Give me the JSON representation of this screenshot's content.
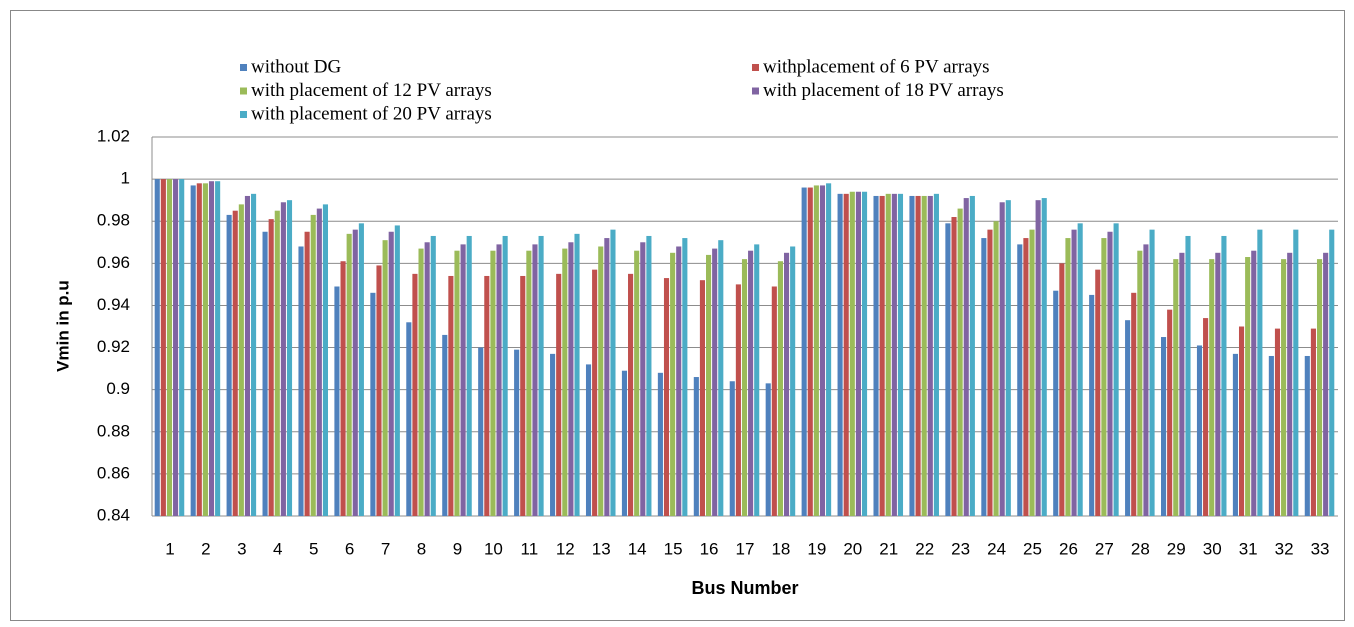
{
  "chart_data": {
    "type": "bar",
    "x_label": "Bus Number",
    "y_label": "Vmin in p.u",
    "categories": [
      "1",
      "2",
      "3",
      "4",
      "5",
      "6",
      "7",
      "8",
      "9",
      "10",
      "11",
      "12",
      "13",
      "14",
      "15",
      "16",
      "17",
      "18",
      "19",
      "20",
      "21",
      "22",
      "23",
      "24",
      "25",
      "26",
      "27",
      "28",
      "29",
      "30",
      "31",
      "32",
      "33"
    ],
    "series": [
      {
        "name": "without DG",
        "color": "#4f81bd",
        "values": [
          1.0,
          0.997,
          0.983,
          0.975,
          0.968,
          0.949,
          0.946,
          0.932,
          0.926,
          0.92,
          0.919,
          0.917,
          0.912,
          0.909,
          0.908,
          0.906,
          0.904,
          0.903,
          0.996,
          0.993,
          0.992,
          0.992,
          0.979,
          0.972,
          0.969,
          0.947,
          0.945,
          0.933,
          0.925,
          0.921,
          0.917,
          0.916,
          0.916
        ]
      },
      {
        "name": "withplacement of 6 PV arrays",
        "color": "#c0504d",
        "values": [
          1.0,
          0.998,
          0.985,
          0.981,
          0.975,
          0.961,
          0.959,
          0.955,
          0.954,
          0.954,
          0.954,
          0.955,
          0.957,
          0.955,
          0.953,
          0.952,
          0.95,
          0.949,
          0.996,
          0.993,
          0.992,
          0.992,
          0.982,
          0.976,
          0.972,
          0.96,
          0.957,
          0.946,
          0.938,
          0.934,
          0.93,
          0.929,
          0.929
        ]
      },
      {
        "name": "with placement of 12 PV arrays",
        "color": "#9bbb59",
        "values": [
          1.0,
          0.998,
          0.988,
          0.985,
          0.983,
          0.974,
          0.971,
          0.967,
          0.966,
          0.966,
          0.966,
          0.967,
          0.968,
          0.966,
          0.965,
          0.964,
          0.962,
          0.961,
          0.997,
          0.994,
          0.993,
          0.992,
          0.986,
          0.98,
          0.976,
          0.972,
          0.972,
          0.966,
          0.962,
          0.962,
          0.963,
          0.962,
          0.962
        ]
      },
      {
        "name": "with placement of 18 PV arrays",
        "color": "#8064a2",
        "values": [
          1.0,
          0.999,
          0.992,
          0.989,
          0.986,
          0.976,
          0.975,
          0.97,
          0.969,
          0.969,
          0.969,
          0.97,
          0.972,
          0.97,
          0.968,
          0.967,
          0.966,
          0.965,
          0.997,
          0.994,
          0.993,
          0.992,
          0.991,
          0.989,
          0.99,
          0.976,
          0.975,
          0.969,
          0.965,
          0.965,
          0.966,
          0.965,
          0.965
        ]
      },
      {
        "name": "with placement of 20 PV arrays",
        "color": "#4bacc6",
        "values": [
          1.0,
          0.999,
          0.993,
          0.99,
          0.988,
          0.979,
          0.978,
          0.973,
          0.973,
          0.973,
          0.973,
          0.974,
          0.976,
          0.973,
          0.972,
          0.971,
          0.969,
          0.968,
          0.998,
          0.994,
          0.993,
          0.993,
          0.992,
          0.99,
          0.991,
          0.979,
          0.979,
          0.976,
          0.973,
          0.973,
          0.976,
          0.976,
          0.976
        ]
      }
    ],
    "ylim": [
      0.84,
      1.02
    ],
    "yticks": [
      0.84,
      0.86,
      0.88,
      0.9,
      0.92,
      0.94,
      0.96,
      0.98,
      1,
      1.02
    ],
    "grid": true,
    "legend": "top"
  }
}
